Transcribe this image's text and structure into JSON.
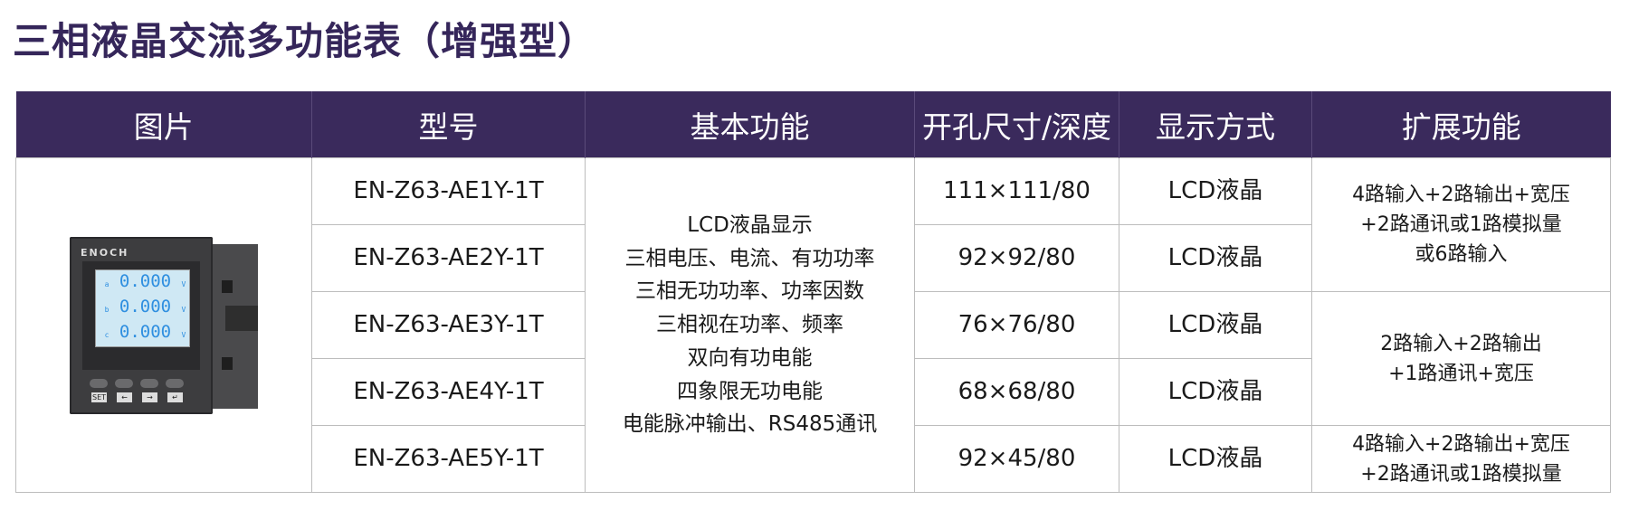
{
  "title": "三相液晶交流多功能表（增强型）",
  "headers": [
    "图片",
    "型号",
    "基本功能",
    "开孔尺寸/深度",
    "显示方式",
    "扩展功能"
  ],
  "device": {
    "brand": "ENOCH",
    "readings": [
      "0.000",
      "0.000",
      "0.000"
    ],
    "phases": [
      "a",
      "b",
      "c"
    ],
    "unit": "V",
    "keys": [
      "SET",
      "←",
      "→",
      "↵"
    ]
  },
  "basic_functions": [
    "LCD液晶显示",
    "三相电压、电流、有功功率",
    "三相无功功率、功率因数",
    "三相视在功率、频率",
    "双向有功电能",
    "四象限无功电能",
    "电能脉冲输出、RS485通讯"
  ],
  "rows": [
    {
      "model": "EN-Z63-AE1Y-1T",
      "size": "111×111/80",
      "display": "LCD液晶"
    },
    {
      "model": "EN-Z63-AE2Y-1T",
      "size": "92×92/80",
      "display": "LCD液晶"
    },
    {
      "model": "EN-Z63-AE3Y-1T",
      "size": "76×76/80",
      "display": "LCD液晶"
    },
    {
      "model": "EN-Z63-AE4Y-1T",
      "size": "68×68/80",
      "display": "LCD液晶"
    },
    {
      "model": "EN-Z63-AE5Y-1T",
      "size": "92×45/80",
      "display": "LCD液晶"
    }
  ],
  "extensions": [
    [
      "4路输入+2路输出+宽压",
      "+2路通讯或1路模拟量",
      "或6路输入"
    ],
    [
      "2路输入+2路输出",
      "+1路通讯+宽压"
    ],
    [
      "4路输入+2路输出+宽压",
      "+2路通讯或1路模拟量"
    ]
  ],
  "colors": {
    "header_bg": "#3a2a5c",
    "title": "#35265a"
  }
}
